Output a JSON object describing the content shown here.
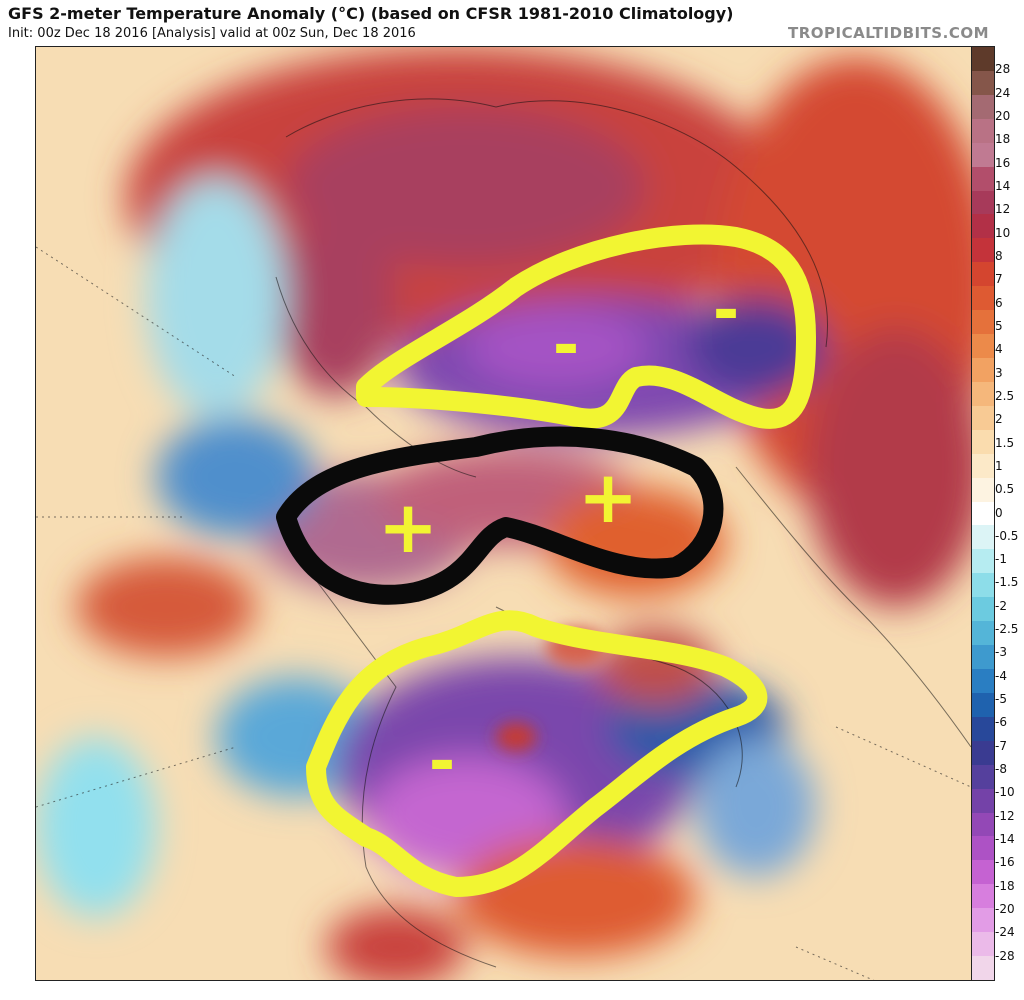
{
  "header": {
    "title": "GFS 2-meter Temperature Anomaly (°C) (based on CFSR 1981-2010 Climatology)",
    "subtitle": "Init: 00z Dec 18 2016   [Analysis]   valid at 00z Sun, Dec 18 2016",
    "site": "TROPICALTIDBITS.COM"
  },
  "annotations": {
    "signs": [
      {
        "text": "+",
        "region": "western-arctic",
        "ring": "black"
      },
      {
        "text": "+",
        "region": "eastern-arctic",
        "ring": "black"
      },
      {
        "text": "-",
        "region": "central-siberia",
        "ring": "yellow"
      },
      {
        "text": "-",
        "region": "eastern-siberia",
        "ring": "yellow"
      },
      {
        "text": "-",
        "region": "central-north-america",
        "ring": "yellow"
      }
    ]
  },
  "colorbar": {
    "ticks": [
      "28",
      "24",
      "20",
      "18",
      "16",
      "14",
      "12",
      "10",
      "8",
      "7",
      "6",
      "5",
      "4",
      "3",
      "2.5",
      "2",
      "1.5",
      "1",
      "0.5",
      "0",
      "-0.5",
      "-1",
      "-1.5",
      "-2",
      "-2.5",
      "-3",
      "-4",
      "-5",
      "-6",
      "-7",
      "-8",
      "-10",
      "-12",
      "-14",
      "-16",
      "-18",
      "-20",
      "-24",
      "-28"
    ],
    "colors": [
      "#5e3a2a",
      "#85564a",
      "#a46a72",
      "#b97285",
      "#c07a92",
      "#b24e6b",
      "#a73a5a",
      "#b23047",
      "#c4333a",
      "#d4452f",
      "#de5a32",
      "#e5713b",
      "#ec8a4a",
      "#f2a262",
      "#f5b77b",
      "#f8ca94",
      "#fadcae",
      "#fce9c8",
      "#fdf3e1",
      "#ffffff",
      "#dcf4f6",
      "#b6ecf1",
      "#8ddde9",
      "#6ccbe0",
      "#54b5d8",
      "#3e9ace",
      "#2a7ec2",
      "#1f62ae",
      "#28489a",
      "#3a3b91",
      "#55409d",
      "#7442a8",
      "#9348b6",
      "#ad52c5",
      "#c562d2",
      "#d77ede",
      "#e29ce6",
      "#ebbae9",
      "#f1d6ea"
    ]
  }
}
